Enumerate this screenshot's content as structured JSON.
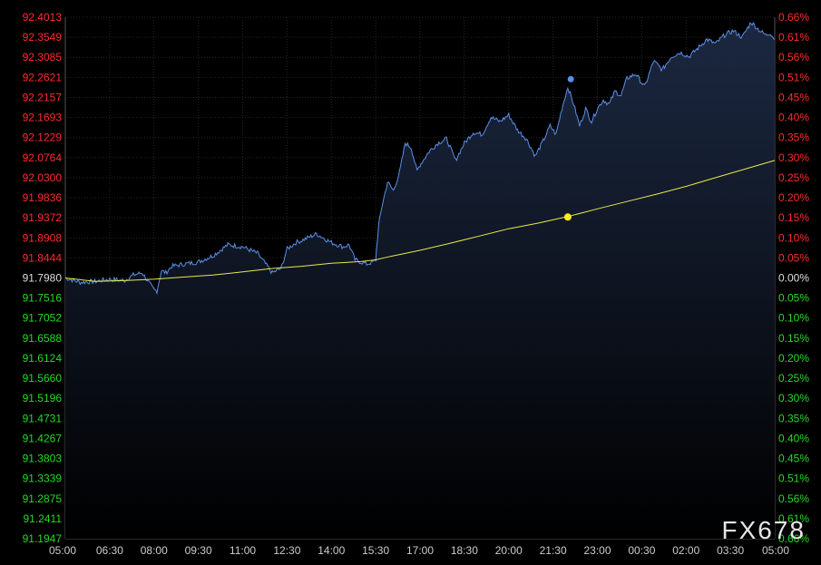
{
  "watermark": "FX678",
  "colors": {
    "background": "#000000",
    "grid": "#262626",
    "axis": "#555555",
    "up_label": "#ff2a2a",
    "down_label": "#22dd22",
    "neutral_label": "#dddddd",
    "time_label": "#cccccc",
    "price_line": "#5b8fe6",
    "price_fill_top": "#1d2a44",
    "avg_line": "#e8e84a",
    "avg_dot": "#ffee22",
    "watermark": "#e6e6e6"
  },
  "chart_data": {
    "type": "line",
    "title": "",
    "xlabel": "",
    "ylabel": "",
    "base_price": 91.798,
    "ylim": [
      91.1947,
      92.4013
    ],
    "y_ticks": [
      "92.4013",
      "92.3549",
      "92.3085",
      "92.2621",
      "92.2157",
      "92.1693",
      "92.1229",
      "92.0764",
      "92.0300",
      "91.9836",
      "91.9372",
      "91.8908",
      "91.8444",
      "91.7980",
      "91.7516",
      "91.7052",
      "91.6588",
      "91.6124",
      "91.5660",
      "91.5196",
      "91.4731",
      "91.4267",
      "91.3803",
      "91.3339",
      "91.2875",
      "91.2411",
      "91.1947"
    ],
    "pct_ticks": [
      "0.66%",
      "0.61%",
      "0.56%",
      "0.51%",
      "0.45%",
      "0.40%",
      "0.35%",
      "0.30%",
      "0.25%",
      "0.20%",
      "0.15%",
      "0.10%",
      "0.05%",
      "0.00%",
      "0.05%",
      "0.10%",
      "0.15%",
      "0.20%",
      "0.25%",
      "0.30%",
      "0.35%",
      "0.40%",
      "0.45%",
      "0.51%",
      "0.56%",
      "0.61%",
      "0.66%"
    ],
    "x_ticks": [
      "05:00",
      "06:30",
      "08:00",
      "09:30",
      "11:00",
      "12:30",
      "14:00",
      "15:30",
      "17:00",
      "18:30",
      "20:00",
      "21:30",
      "23:00",
      "00:30",
      "02:00",
      "03:30",
      "05:00"
    ],
    "x_tick_hours": [
      0,
      1.5,
      3,
      4.5,
      6,
      7.5,
      9,
      10.5,
      12,
      13.5,
      15,
      16.5,
      18,
      19.5,
      21,
      22.5,
      24
    ],
    "xlim_hours": [
      0,
      24
    ],
    "grid": true,
    "series": [
      {
        "style": "price",
        "x_hours": [
          0,
          0.5,
          1,
          1.5,
          2,
          2.3,
          2.6,
          3,
          3.1,
          3.25,
          3.4,
          3.6,
          4,
          4.5,
          5,
          5.5,
          6,
          6.5,
          7,
          7.3,
          7.5,
          7.8,
          8,
          8.5,
          9,
          9.4,
          9.6,
          9.8,
          10,
          10.2,
          10.4,
          10.5,
          10.6,
          10.7,
          10.9,
          11.1,
          11.3,
          11.5,
          11.7,
          11.9,
          12,
          12.3,
          12.6,
          12.9,
          13.2,
          13.5,
          13.8,
          14.1,
          14.4,
          14.7,
          15,
          15.3,
          15.6,
          15.9,
          16.2,
          16.4,
          16.6,
          16.8,
          17.0,
          17.2,
          17.4,
          17.6,
          17.8,
          18.0,
          18.2,
          18.4,
          18.6,
          18.8,
          19.0,
          19.3,
          19.6,
          19.9,
          20.2,
          20.5,
          20.8,
          21.1,
          21.4,
          21.7,
          22.0,
          22.3,
          22.6,
          22.9,
          23.2,
          23.5,
          23.7,
          23.85,
          24
        ],
        "values": [
          91.798,
          91.788,
          91.79,
          91.795,
          91.792,
          91.805,
          91.81,
          91.77,
          91.768,
          91.815,
          91.81,
          91.825,
          91.83,
          91.835,
          91.85,
          91.875,
          91.87,
          91.855,
          91.81,
          91.82,
          91.865,
          91.88,
          91.885,
          91.9,
          91.88,
          91.87,
          91.875,
          91.84,
          91.835,
          91.83,
          91.835,
          91.84,
          91.92,
          91.96,
          92.02,
          92.0,
          92.04,
          92.11,
          92.1,
          92.045,
          92.06,
          92.09,
          92.11,
          92.12,
          92.07,
          92.11,
          92.135,
          92.13,
          92.17,
          92.16,
          92.175,
          92.14,
          92.12,
          92.08,
          92.12,
          92.15,
          92.13,
          92.19,
          92.24,
          92.2,
          92.15,
          92.19,
          92.16,
          92.19,
          92.21,
          92.2,
          92.23,
          92.22,
          92.26,
          92.27,
          92.24,
          92.3,
          92.28,
          92.31,
          92.32,
          92.31,
          92.33,
          92.35,
          92.34,
          92.36,
          92.37,
          92.355,
          92.39,
          92.37,
          92.36,
          92.365,
          92.35
        ],
        "marker": {
          "x_hour": 17.1,
          "value": 92.258
        }
      },
      {
        "style": "average",
        "x_hours": [
          0,
          1,
          2,
          3,
          4,
          5,
          6,
          7,
          8,
          9,
          10,
          10.5,
          11,
          12,
          13,
          14,
          15,
          16,
          17,
          18,
          19,
          20,
          21,
          22,
          23,
          24
        ],
        "values": [
          91.798,
          91.79,
          91.792,
          91.795,
          91.8,
          91.805,
          91.812,
          91.82,
          91.825,
          91.832,
          91.836,
          91.84,
          91.848,
          91.862,
          91.878,
          91.895,
          91.912,
          91.925,
          91.94,
          91.958,
          91.975,
          91.992,
          92.01,
          92.03,
          92.05,
          92.07
        ],
        "marker": {
          "x_hour": 17.0,
          "value": 91.939
        }
      }
    ]
  }
}
